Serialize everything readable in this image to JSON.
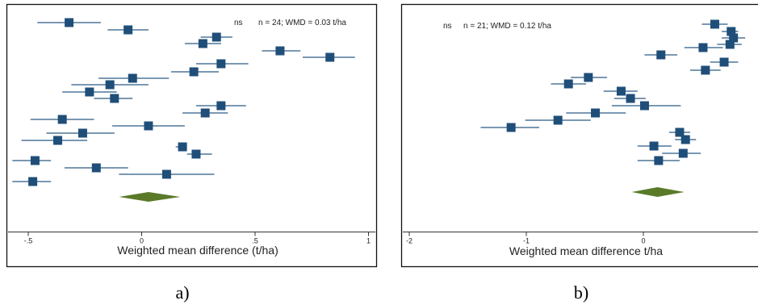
{
  "chart_data": [
    {
      "type": "forest",
      "panel_label": "a)",
      "xlabel": "Weighted mean difference (t/ha)",
      "xlim": [
        -0.57,
        1.0
      ],
      "xticks": [
        -0.5,
        0,
        0.5,
        1
      ],
      "xtick_labels": [
        "-.5",
        "0",
        ".5",
        "1"
      ],
      "annotation_sig": "ns",
      "annotation_stats": "n = 24; WMD = 0.03 t/ha",
      "marker_color": "#1f4e79",
      "ci_color": "#2a5a85",
      "pooled_color": "#5a7a2a",
      "studies": [
        {
          "est": -0.32,
          "lo": -0.46,
          "hi": -0.18
        },
        {
          "est": -0.06,
          "lo": -0.15,
          "hi": 0.03
        },
        {
          "est": 0.33,
          "lo": 0.26,
          "hi": 0.4
        },
        {
          "est": 0.27,
          "lo": 0.19,
          "hi": 0.35
        },
        {
          "est": 0.61,
          "lo": 0.53,
          "hi": 0.7
        },
        {
          "est": 0.83,
          "lo": 0.71,
          "hi": 0.94
        },
        {
          "est": 0.35,
          "lo": 0.24,
          "hi": 0.47
        },
        {
          "est": 0.23,
          "lo": 0.13,
          "hi": 0.34
        },
        {
          "est": -0.04,
          "lo": -0.19,
          "hi": 0.12
        },
        {
          "est": -0.14,
          "lo": -0.31,
          "hi": 0.03
        },
        {
          "est": -0.23,
          "lo": -0.35,
          "hi": -0.11
        },
        {
          "est": -0.12,
          "lo": -0.21,
          "hi": -0.04
        },
        {
          "est": 0.35,
          "lo": 0.24,
          "hi": 0.46
        },
        {
          "est": 0.28,
          "lo": 0.18,
          "hi": 0.38
        },
        {
          "est": -0.35,
          "lo": -0.49,
          "hi": -0.21
        },
        {
          "est": 0.03,
          "lo": -0.13,
          "hi": 0.19
        },
        {
          "est": -0.26,
          "lo": -0.42,
          "hi": -0.12
        },
        {
          "est": -0.37,
          "lo": -0.53,
          "hi": -0.24
        },
        {
          "est": 0.18,
          "lo": 0.15,
          "hi": 0.2
        },
        {
          "est": 0.24,
          "lo": 0.2,
          "hi": 0.31
        },
        {
          "est": -0.47,
          "lo": -0.57,
          "hi": -0.4
        },
        {
          "est": -0.2,
          "lo": -0.34,
          "hi": -0.06
        },
        {
          "est": 0.11,
          "lo": -0.1,
          "hi": 0.32
        },
        {
          "est": -0.48,
          "lo": -0.57,
          "hi": -0.4
        }
      ],
      "pooled": {
        "est": 0.03,
        "lo": -0.1,
        "hi": 0.17
      }
    },
    {
      "type": "forest",
      "panel_label": "b)",
      "xlabel": "Weighted mean difference t/ha",
      "xlim": [
        -2.0,
        1.0
      ],
      "xticks": [
        -2,
        -1,
        0
      ],
      "xtick_labels": [
        "-2",
        "-1",
        "0"
      ],
      "annotation_sig": "ns",
      "annotation_stats": "n = 21; WMD = 0.12 t/ha",
      "marker_color": "#1f4e79",
      "ci_color": "#2a5a85",
      "pooled_color": "#5a7a2a",
      "studies": [
        {
          "est": 0.61,
          "lo": 0.5,
          "hi": 0.72
        },
        {
          "est": 0.75,
          "lo": 0.67,
          "hi": 0.81
        },
        {
          "est": 0.77,
          "lo": 0.67,
          "hi": 0.87
        },
        {
          "est": 0.74,
          "lo": 0.63,
          "hi": 0.84
        },
        {
          "est": 0.51,
          "lo": 0.35,
          "hi": 0.68
        },
        {
          "est": 0.15,
          "lo": 0.01,
          "hi": 0.29
        },
        {
          "est": 0.69,
          "lo": 0.57,
          "hi": 0.81
        },
        {
          "est": 0.53,
          "lo": 0.4,
          "hi": 0.66
        },
        {
          "est": -0.47,
          "lo": -0.62,
          "hi": -0.31
        },
        {
          "est": -0.64,
          "lo": -0.79,
          "hi": -0.49
        },
        {
          "est": -0.19,
          "lo": -0.34,
          "hi": -0.05
        },
        {
          "est": -0.11,
          "lo": -0.25,
          "hi": 0.02
        },
        {
          "est": 0.01,
          "lo": -0.27,
          "hi": 0.32
        },
        {
          "est": -0.41,
          "lo": -0.66,
          "hi": -0.15
        },
        {
          "est": -0.73,
          "lo": -1.01,
          "hi": -0.45
        },
        {
          "est": -1.13,
          "lo": -1.39,
          "hi": -0.89
        },
        {
          "est": 0.31,
          "lo": 0.22,
          "hi": 0.4
        },
        {
          "est": 0.36,
          "lo": 0.27,
          "hi": 0.45
        },
        {
          "est": 0.09,
          "lo": -0.05,
          "hi": 0.24
        },
        {
          "est": 0.34,
          "lo": 0.16,
          "hi": 0.49
        },
        {
          "est": 0.13,
          "lo": -0.05,
          "hi": 0.31
        }
      ],
      "pooled": {
        "est": 0.12,
        "lo": -0.1,
        "hi": 0.35
      }
    }
  ]
}
